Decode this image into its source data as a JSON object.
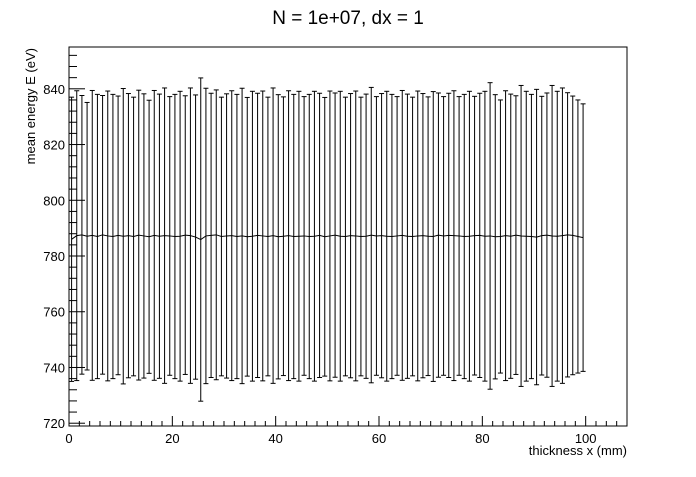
{
  "chart_data": {
    "type": "line",
    "title": "N = 1e+07, dx = 1",
    "xlabel": "thickness x (mm)",
    "ylabel": "mean energy E (eV)",
    "xlim": [
      0,
      108
    ],
    "ylim": [
      719,
      855
    ],
    "x_ticks": [
      0,
      20,
      40,
      60,
      80,
      100
    ],
    "y_ticks": [
      720,
      740,
      760,
      780,
      800,
      820,
      840
    ],
    "x_tick_labels": [
      "0",
      "20",
      "40",
      "60",
      "80",
      "100"
    ],
    "y_tick_labels": [
      "720",
      "740",
      "760",
      "780",
      "800",
      "820",
      "840"
    ],
    "grid": false,
    "series": [
      {
        "x": [
          0.5,
          1.5,
          2.5,
          3.5,
          4.5,
          5.5,
          6.5,
          7.5,
          8.5,
          9.5,
          10.5,
          11.5,
          12.5,
          13.5,
          14.5,
          15.5,
          16.5,
          17.5,
          18.5,
          19.5,
          20.5,
          21.5,
          22.5,
          23.5,
          24.5,
          25.5,
          26.5,
          27.5,
          28.5,
          29.5,
          30.5,
          31.5,
          32.5,
          33.5,
          34.5,
          35.5,
          36.5,
          37.5,
          38.5,
          39.5,
          40.5,
          41.5,
          42.5,
          43.5,
          44.5,
          45.5,
          46.5,
          47.5,
          48.5,
          49.5,
          50.5,
          51.5,
          52.5,
          53.5,
          54.5,
          55.5,
          56.5,
          57.5,
          58.5,
          59.5,
          60.5,
          61.5,
          62.5,
          63.5,
          64.5,
          65.5,
          66.5,
          67.5,
          68.5,
          69.5,
          70.5,
          71.5,
          72.5,
          73.5,
          74.5,
          75.5,
          76.5,
          77.5,
          78.5,
          79.5,
          80.5,
          81.5,
          82.5,
          83.5,
          84.5,
          85.5,
          86.5,
          87.5,
          88.5,
          89.5,
          90.5,
          91.5,
          92.5,
          93.5,
          94.5,
          95.5,
          96.5,
          97.5,
          98.5,
          99.5
        ],
        "y": [
          786.0,
          787.3,
          787.6,
          787.1,
          787.4,
          787.0,
          787.6,
          787.2,
          787.0,
          787.4,
          787.1,
          787.3,
          787.0,
          787.5,
          787.2,
          786.9,
          787.4,
          787.1,
          787.3,
          787.2,
          787.0,
          787.1,
          787.5,
          787.3,
          786.8,
          785.9,
          787.2,
          787.4,
          787.6,
          787.0,
          787.2,
          787.3,
          787.0,
          787.2,
          786.9,
          787.1,
          787.4,
          787.2,
          787.0,
          787.3,
          786.9,
          787.1,
          787.3,
          787.0,
          787.1,
          787.2,
          787.0,
          787.1,
          787.4,
          786.9,
          787.2,
          787.5,
          787.1,
          787.0,
          787.3,
          787.2,
          787.0,
          787.1,
          787.5,
          787.2,
          787.3,
          787.1,
          787.0,
          787.2,
          787.4,
          787.1,
          787.0,
          787.2,
          787.3,
          787.1,
          787.0,
          787.5,
          787.2,
          787.4,
          787.3,
          787.2,
          787.0,
          787.1,
          787.3,
          787.4,
          787.1,
          787.2,
          786.9,
          787.0,
          787.3,
          787.1,
          787.5,
          787.2,
          787.1,
          787.0,
          786.8,
          787.3,
          787.5,
          787.2,
          787.1,
          787.3,
          787.6,
          787.4,
          787.0,
          786.6
        ],
        "err": [
          51,
          52,
          50,
          48,
          52,
          51,
          50,
          52,
          51,
          50,
          53,
          51,
          50,
          52,
          51,
          49,
          52,
          51,
          53,
          50,
          51,
          52,
          50,
          53,
          51,
          58,
          53,
          51,
          52,
          50,
          51,
          52,
          51,
          53,
          50,
          52,
          51,
          52,
          50,
          53,
          51,
          50,
          52,
          51,
          52,
          50,
          51,
          52,
          51,
          50,
          52,
          51,
          52,
          50,
          51,
          52,
          50,
          51,
          53,
          50,
          51,
          52,
          51,
          50,
          52,
          51,
          50,
          52,
          51,
          50,
          52,
          51,
          50,
          51,
          52,
          50,
          51,
          52,
          50,
          51,
          52,
          55,
          51,
          49,
          52,
          51,
          50,
          54,
          52,
          51,
          53,
          50,
          51,
          54,
          52,
          53,
          51,
          50,
          49,
          48
        ]
      }
    ]
  }
}
